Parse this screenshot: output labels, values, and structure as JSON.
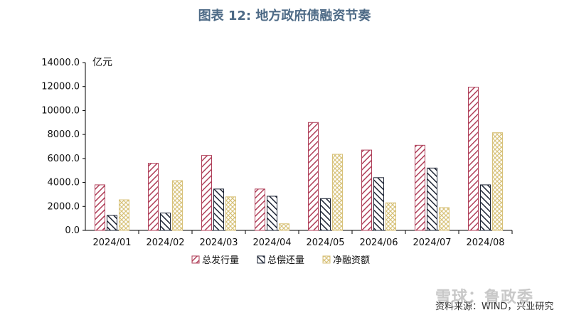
{
  "chart_data": {
    "type": "bar",
    "title": "图表 12: 地方政府债融资节奏",
    "unit_label": "亿元",
    "categories": [
      "2024/01",
      "2024/02",
      "2024/03",
      "2024/04",
      "2024/05",
      "2024/06",
      "2024/07",
      "2024/08"
    ],
    "series": [
      {
        "name": "总发行量",
        "values": [
          3800,
          5600,
          6250,
          3450,
          9000,
          6700,
          7100,
          11950
        ],
        "color": "#b0405a",
        "pattern": "diag-right"
      },
      {
        "name": "总偿还量",
        "values": [
          1250,
          1450,
          3450,
          2850,
          2650,
          4400,
          5200,
          3800
        ],
        "color": "#1e2535",
        "pattern": "diag-left"
      },
      {
        "name": "净融资额",
        "values": [
          2550,
          4150,
          2800,
          550,
          6350,
          2300,
          1900,
          8150
        ],
        "color": "#d8c27a",
        "pattern": "cross"
      }
    ],
    "yticks": [
      "0.0",
      "2000.0",
      "4000.0",
      "6000.0",
      "8000.0",
      "10000.0",
      "12000.0",
      "14000.0"
    ],
    "ylim": [
      0,
      14000
    ],
    "grid": false,
    "legend_position": "bottom"
  },
  "watermark": "雪球：鲁政委",
  "source": "资料来源：WIND，兴业研究"
}
